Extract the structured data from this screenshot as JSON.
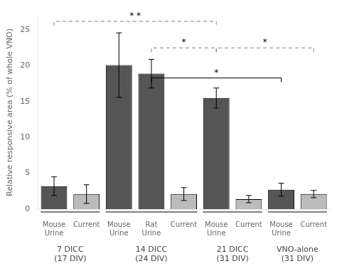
{
  "chart_data": {
    "type": "bar",
    "ylabel": "Relative responsive area (% of whole VNO)",
    "groups": [
      {
        "label": "7 DICC\n(17 DIV)",
        "categories": [
          "Mouse\nUrine",
          "Current"
        ],
        "values": [
          3.2,
          2.1
        ],
        "errors": [
          1.3,
          1.3
        ],
        "colors": [
          "#555555",
          "#bbbbbb"
        ]
      },
      {
        "label": "14 DICC\n(24 DIV)",
        "categories": [
          "Mouse\nUrine",
          "Rat\nUrine",
          "Current"
        ],
        "values": [
          20.1,
          18.9,
          2.1
        ],
        "errors": [
          4.5,
          2.0,
          0.9
        ],
        "colors": [
          "#555555",
          "#555555",
          "#bbbbbb"
        ]
      },
      {
        "label": "21 DICC\n(31 DIV)",
        "categories": [
          "Mouse\nUrine",
          "Current"
        ],
        "values": [
          15.5,
          1.4
        ],
        "errors": [
          1.4,
          0.5
        ],
        "colors": [
          "#555555",
          "#bbbbbb"
        ]
      },
      {
        "label": "VNO-alone\n(31 DIV)",
        "categories": [
          "Mouse\nUrine",
          "Current"
        ],
        "values": [
          2.7,
          2.1
        ],
        "errors": [
          0.9,
          0.5
        ],
        "colors": [
          "#555555",
          "#bbbbbb"
        ]
      }
    ],
    "annotations": [
      {
        "text": "* *",
        "from": 0,
        "to": 5,
        "y": 26.2,
        "line_style": "dashed"
      },
      {
        "text": "*",
        "from": 3,
        "to": 5,
        "y": 22.5,
        "line_style": "dashed"
      },
      {
        "text": "*",
        "from": 5,
        "to": 8,
        "y": 22.5,
        "line_style": "dashed"
      },
      {
        "text": "*",
        "from": 3,
        "to": 7,
        "y": 18.3,
        "line_style": "solid"
      }
    ],
    "ylim": [
      0,
      27
    ],
    "yticks": [
      0,
      5,
      10,
      15,
      20,
      25
    ],
    "grid": false
  }
}
